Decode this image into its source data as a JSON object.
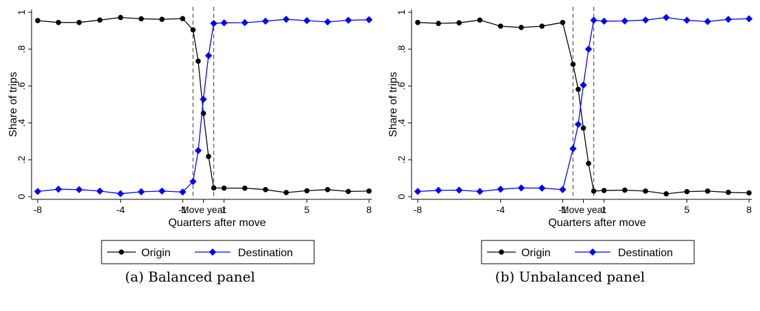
{
  "chart_data": [
    {
      "type": "line",
      "caption": "(a) Balanced panel",
      "xlabel": "Quarters after move",
      "ylabel": "Share of trips",
      "xlim": [
        -8,
        8
      ],
      "ylim": [
        0,
        1
      ],
      "x_ticks": [
        {
          "value": -8,
          "label": "-8"
        },
        {
          "value": -4,
          "label": "-4"
        },
        {
          "value": -1,
          "label": "-1"
        },
        {
          "value": 1,
          "label": "1"
        },
        {
          "value": 5,
          "label": "5"
        },
        {
          "value": 8,
          "label": "8"
        }
      ],
      "move_year_label": "Move year",
      "y_ticks": [
        {
          "value": 0,
          "label": "0"
        },
        {
          "value": 0.2,
          "label": ".2"
        },
        {
          "value": 0.4,
          "label": ".4"
        },
        {
          "value": 0.6,
          "label": ".6"
        },
        {
          "value": 0.8,
          "label": ".8"
        },
        {
          "value": 1,
          "label": "1"
        }
      ],
      "vlines": [
        -0.5,
        0.5
      ],
      "x": [
        -8,
        -7,
        -6,
        -5,
        -4,
        -3,
        -2,
        -1,
        -0.5,
        -0.25,
        0,
        0.25,
        0.5,
        1,
        2,
        3,
        4,
        5,
        6,
        7,
        8
      ],
      "series": [
        {
          "name": "Origin",
          "color": "#000000",
          "marker": "circle",
          "values": [
            0.955,
            0.945,
            0.945,
            0.958,
            0.972,
            0.965,
            0.962,
            0.966,
            0.905,
            0.735,
            0.452,
            0.218,
            0.047,
            0.046,
            0.046,
            0.038,
            0.022,
            0.032,
            0.038,
            0.028,
            0.03
          ]
        },
        {
          "name": "Destination",
          "color": "#0000ff",
          "marker": "diamond",
          "values": [
            0.028,
            0.04,
            0.038,
            0.03,
            0.016,
            0.026,
            0.03,
            0.025,
            0.082,
            0.25,
            0.528,
            0.765,
            0.94,
            0.943,
            0.944,
            0.952,
            0.962,
            0.955,
            0.948,
            0.957,
            0.96
          ]
        }
      ],
      "legend": "bottom"
    },
    {
      "type": "line",
      "caption": "(b) Unbalanced panel",
      "xlabel": "Quarters after move",
      "ylabel": "Share of trips",
      "xlim": [
        -8,
        8
      ],
      "ylim": [
        0,
        1
      ],
      "x_ticks": [
        {
          "value": -8,
          "label": "-8"
        },
        {
          "value": -4,
          "label": "-4"
        },
        {
          "value": -1,
          "label": "-1"
        },
        {
          "value": 1,
          "label": "1"
        },
        {
          "value": 5,
          "label": "5"
        },
        {
          "value": 8,
          "label": "8"
        }
      ],
      "move_year_label": "Move year",
      "y_ticks": [
        {
          "value": 0,
          "label": "0"
        },
        {
          "value": 0.2,
          "label": ".2"
        },
        {
          "value": 0.4,
          "label": ".4"
        },
        {
          "value": 0.6,
          "label": ".6"
        },
        {
          "value": 0.8,
          "label": ".8"
        },
        {
          "value": 1,
          "label": "1"
        }
      ],
      "vlines": [
        -0.5,
        0.5
      ],
      "x": [
        -8,
        -7,
        -6,
        -5,
        -4,
        -3,
        -2,
        -1,
        -0.5,
        -0.25,
        0,
        0.25,
        0.5,
        1,
        2,
        3,
        4,
        5,
        6,
        7,
        8
      ],
      "series": [
        {
          "name": "Origin",
          "color": "#000000",
          "marker": "circle",
          "values": [
            0.945,
            0.94,
            0.943,
            0.958,
            0.925,
            0.918,
            0.925,
            0.945,
            0.718,
            0.582,
            0.372,
            0.18,
            0.03,
            0.033,
            0.035,
            0.03,
            0.015,
            0.027,
            0.03,
            0.023,
            0.02
          ]
        },
        {
          "name": "Destination",
          "color": "#0000ff",
          "marker": "diamond",
          "values": [
            0.028,
            0.034,
            0.035,
            0.028,
            0.04,
            0.047,
            0.046,
            0.038,
            0.26,
            0.392,
            0.605,
            0.8,
            0.957,
            0.952,
            0.953,
            0.958,
            0.972,
            0.957,
            0.95,
            0.962,
            0.965
          ]
        }
      ],
      "legend": "bottom"
    }
  ]
}
